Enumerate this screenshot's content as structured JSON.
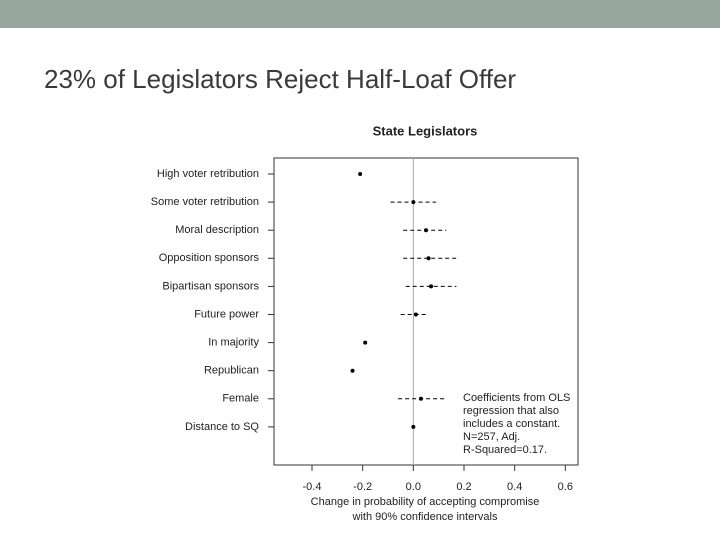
{
  "slide_title": "23% of Legislators Reject Half-Loaf Offer",
  "chart_data": {
    "type": "dot",
    "title": "State Legislators",
    "categories": [
      "High voter retribution",
      "Some voter retribution",
      "Moral description",
      "Opposition sponsors",
      "Bipartisan sponsors",
      "Future power",
      "In majority",
      "Republican",
      "Female",
      "Distance to SQ"
    ],
    "values": [
      -0.21,
      0.0,
      0.05,
      0.06,
      0.07,
      0.01,
      -0.19,
      -0.24,
      0.03,
      0.0
    ],
    "lower": [
      null,
      -0.09,
      -0.04,
      -0.04,
      -0.03,
      -0.05,
      null,
      null,
      -0.06,
      null
    ],
    "upper": [
      null,
      0.09,
      0.13,
      0.17,
      0.17,
      0.06,
      null,
      null,
      0.13,
      null
    ],
    "color": "#000000",
    "xlim": [
      -0.55,
      0.65
    ],
    "xticks": [
      -0.4,
      -0.2,
      {
        "value": 0,
        "label": "0.0"
      },
      0.2,
      0.4,
      0.6
    ],
    "xlabel": [
      "Change in probability of accepting compromise",
      "with 90% confidence intervals"
    ],
    "reference_line": 0,
    "annotation": [
      "Coefficients from OLS",
      "regression that also",
      "includes a constant.",
      "N=257, Adj.",
      "R-Squared=0.17."
    ]
  }
}
